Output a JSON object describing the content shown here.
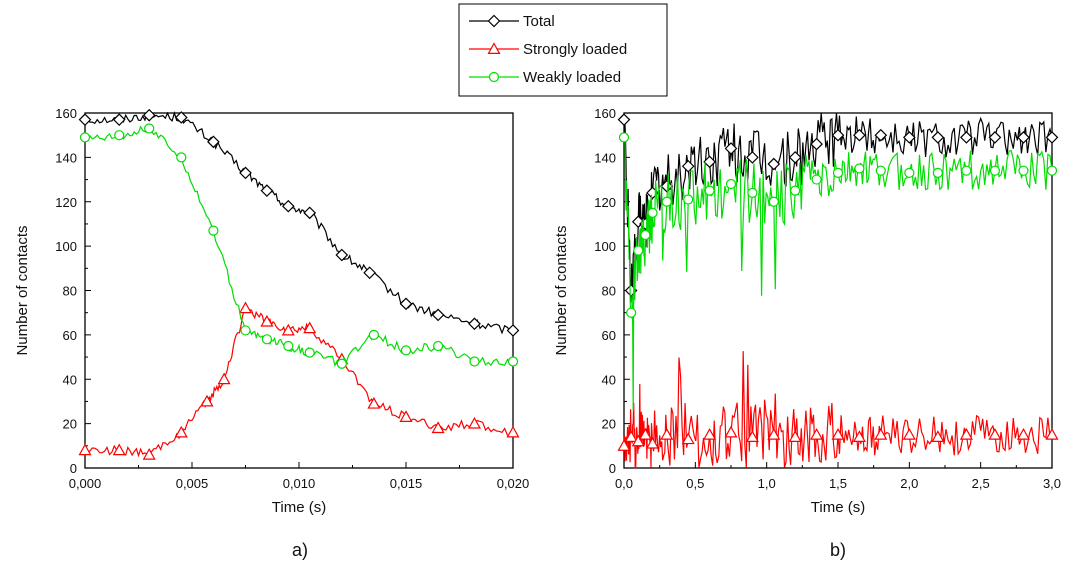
{
  "legend": {
    "items": [
      {
        "label": "Total",
        "color": "#000000",
        "marker": "diamond"
      },
      {
        "label": "Strongly loaded",
        "color": "#ff0000",
        "marker": "triangle"
      },
      {
        "label": "Weakly loaded",
        "color": "#00dd00",
        "marker": "circle"
      }
    ],
    "placement": "top-center"
  },
  "chart_data": [
    {
      "type": "line",
      "panel_label": "a)",
      "xlabel": "Time (s)",
      "ylabel": "Number of contacts",
      "xlim": [
        0,
        0.02
      ],
      "ylim": [
        0,
        160
      ],
      "x_ticks": [
        "0,000",
        "0,005",
        "0,010",
        "0,015",
        "0,020"
      ],
      "y_ticks": [
        "0",
        "20",
        "40",
        "60",
        "80",
        "100",
        "120",
        "140",
        "160"
      ],
      "grid": false,
      "series": [
        {
          "name": "Total",
          "color": "#000000",
          "marker": "diamond",
          "x": [
            0,
            0.0016,
            0.003,
            0.0045,
            0.006,
            0.0075,
            0.0085,
            0.0095,
            0.0105,
            0.012,
            0.0133,
            0.015,
            0.0165,
            0.0182,
            0.02
          ],
          "y": [
            157,
            157,
            159,
            158,
            147,
            133,
            125,
            118,
            115,
            96,
            88,
            74,
            69,
            65,
            62
          ]
        },
        {
          "name": "Strongly loaded",
          "color": "#ff0000",
          "marker": "triangle",
          "x": [
            0,
            0.0016,
            0.003,
            0.0045,
            0.0057,
            0.0065,
            0.0075,
            0.0085,
            0.0095,
            0.0105,
            0.012,
            0.0135,
            0.015,
            0.0165,
            0.0182,
            0.02
          ],
          "y": [
            8,
            8,
            6,
            16,
            30,
            40,
            72,
            66,
            62,
            63,
            49,
            29,
            23,
            18,
            20,
            16
          ]
        },
        {
          "name": "Weakly loaded",
          "color": "#00dd00",
          "marker": "circle",
          "x": [
            0,
            0.0016,
            0.003,
            0.0045,
            0.006,
            0.0075,
            0.0085,
            0.0095,
            0.0105,
            0.012,
            0.0135,
            0.015,
            0.0165,
            0.0182,
            0.02
          ],
          "y": [
            149,
            150,
            153,
            140,
            107,
            62,
            58,
            55,
            52,
            47,
            60,
            53,
            55,
            48,
            48
          ]
        }
      ]
    },
    {
      "type": "line",
      "panel_label": "b)",
      "xlabel": "Time (s)",
      "ylabel": "Number of contacts",
      "xlim": [
        0,
        3.0
      ],
      "ylim": [
        0,
        160
      ],
      "x_ticks": [
        "0,0",
        "0,5",
        "1,0",
        "1,5",
        "2,0",
        "2,5",
        "3,0"
      ],
      "y_ticks": [
        "0",
        "20",
        "40",
        "60",
        "80",
        "100",
        "120",
        "140",
        "160"
      ],
      "grid": false,
      "series": [
        {
          "name": "Total",
          "color": "#000000",
          "marker": "diamond",
          "x": [
            0,
            0.05,
            0.1,
            0.15,
            0.2,
            0.3,
            0.45,
            0.6,
            0.75,
            0.9,
            1.05,
            1.2,
            1.35,
            1.5,
            1.65,
            1.8,
            2.0,
            2.2,
            2.4,
            2.6,
            2.8,
            3.0
          ],
          "y": [
            157,
            80,
            111,
            110,
            124,
            127,
            136,
            138,
            144,
            140,
            137,
            140,
            146,
            150,
            150,
            150,
            149,
            149,
            149,
            149,
            149,
            149
          ]
        },
        {
          "name": "Strongly loaded",
          "color": "#ff0000",
          "marker": "triangle",
          "x": [
            0,
            0.05,
            0.1,
            0.15,
            0.2,
            0.3,
            0.45,
            0.6,
            0.75,
            0.9,
            1.05,
            1.2,
            1.35,
            1.5,
            1.65,
            1.8,
            2.0,
            2.2,
            2.4,
            2.6,
            2.8,
            3.0
          ],
          "y": [
            10,
            14,
            12,
            15,
            11,
            15,
            13,
            15,
            16,
            14,
            15,
            14,
            15,
            15,
            14,
            15,
            15,
            14,
            15,
            15,
            15,
            15
          ]
        },
        {
          "name": "Weakly loaded",
          "color": "#00dd00",
          "marker": "circle",
          "x": [
            0,
            0.05,
            0.1,
            0.15,
            0.2,
            0.3,
            0.45,
            0.6,
            0.75,
            0.9,
            1.05,
            1.2,
            1.35,
            1.5,
            1.65,
            1.8,
            2.0,
            2.2,
            2.4,
            2.6,
            2.8,
            3.0
          ],
          "y": [
            149,
            70,
            98,
            105,
            115,
            120,
            121,
            125,
            128,
            124,
            120,
            125,
            130,
            133,
            135,
            134,
            133,
            133,
            134,
            134,
            134,
            134
          ]
        }
      ]
    }
  ]
}
